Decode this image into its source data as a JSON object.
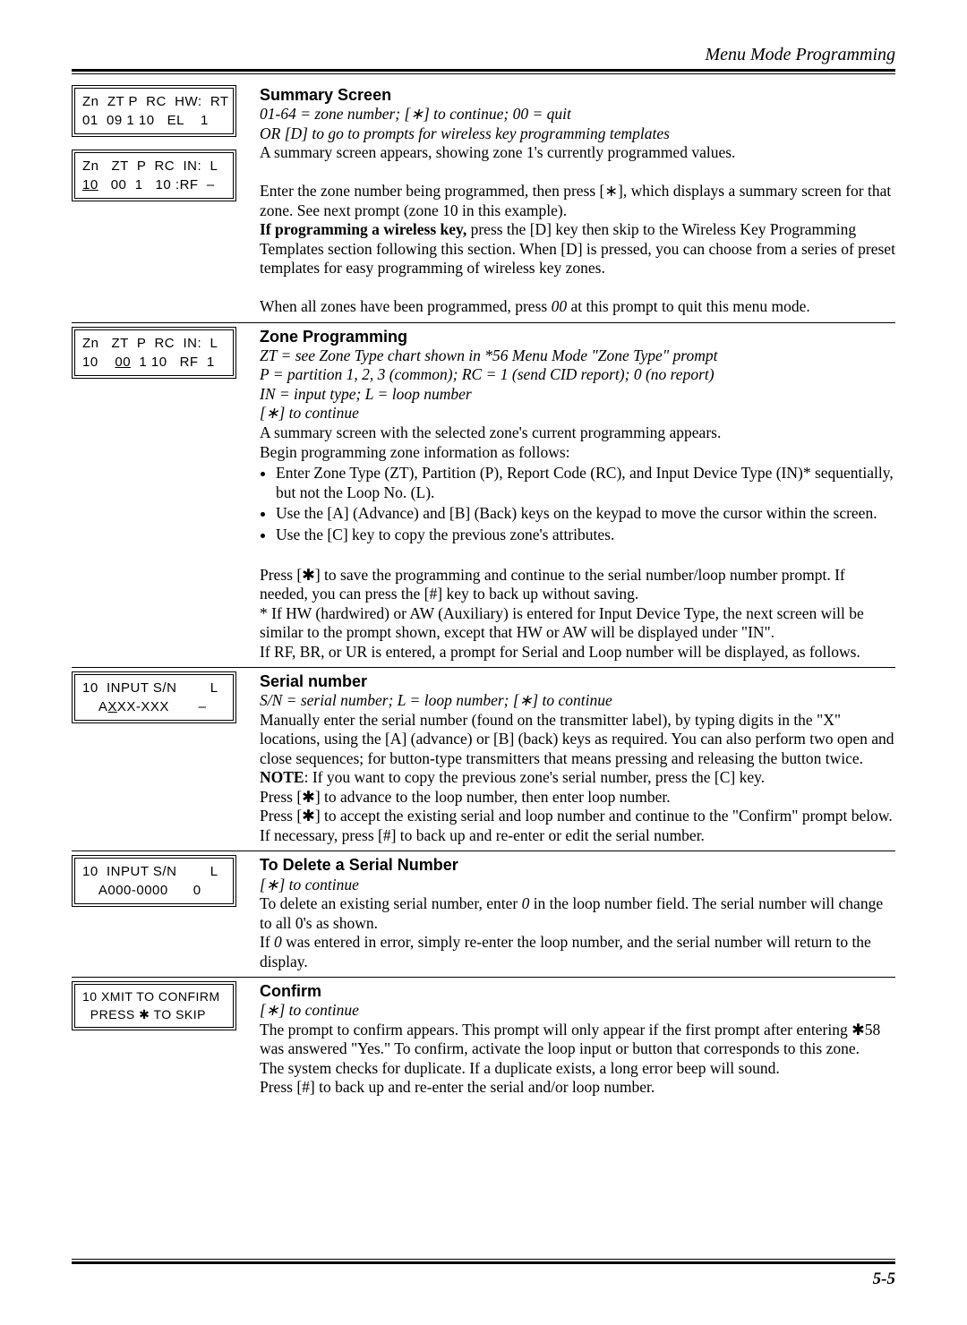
{
  "header": {
    "title": "Menu Mode Programming"
  },
  "footer": {
    "page_number": "5-5"
  },
  "sections": [
    {
      "lcd_lines": [
        "Zn  ZT P  RC  HW:  RT\n01  09 1 10   EL    1",
        "Zn   ZT  P  RC  IN:  L\n10   00  1   10 :RF  –"
      ],
      "title": "Summary Screen",
      "subtitle": "01-64 = zone number;  [∗]  to continue;  00 = quit\nOR  [D] to go to prompts for wireless key programming templates",
      "body_html": "A summary screen appears, showing zone 1's currently programmed  values.<br><br>Enter the zone number being programmed, then press [∗], which displays a summary screen for that zone. See next prompt (zone 10 in this example).<br><span class=\"bold\">If programming a wireless key,</span> press the [D] key then skip to the Wireless Key Programming Templates section following this section. When [D] is pressed, you can choose from a series of preset templates for easy programming of wireless key zones.<br><br>When all zones have been programmed, press <span class=\"ital\">00</span> at this prompt to quit this menu mode."
    },
    {
      "lcd_lines": [
        "Zn   ZT  P  RC  IN:  L\n10    00  1 10   RF  1"
      ],
      "lcd_underline_idx": 0,
      "title": "Zone Programming",
      "subtitle": "ZT = see Zone Type chart shown in *56 Menu Mode \"Zone Type\" prompt\nP =  partition 1, 2, 3 (common); RC = 1 (send CID report); 0 (no report)\nIN =  input type; L = loop number\n[∗] to continue",
      "body_html": "A summary screen with the selected zone's current programming appears.<br>Begin programming zone information as follows:<ul class=\"bullets\"><li>Enter Zone Type (ZT), Partition (P), Report Code (RC), and Input Device Type (IN)* sequentially, but not the Loop No. (L).</li><li>Use the [A] (Advance) and [B] (Back) keys on the keypad to move the cursor within the screen.</li><li>Use the [C] key to copy the previous zone's attributes.</li></ul><br>Press [✱] to save the programming and continue to the serial number/loop number prompt. If needed, you can press the [#] key to back up without saving.<br>* If HW (hardwired) or AW (Auxiliary) is entered for Input Device Type, the next screen will be similar to the prompt shown, except that HW or AW will be displayed under \"IN\".<br>If RF, BR, or UR is entered, a prompt for Serial and Loop number will be displayed, as follows."
    },
    {
      "lcd_lines": [
        "10  INPUT S/N        L\n    AXXX-XXX       –"
      ],
      "lcd_underline_idx": 1,
      "title": "Serial number",
      "subtitle": "S/N = serial number; L = loop number; [∗] to continue",
      "body_html": "Manually enter the serial number (found on the transmitter label), by typing digits in the \"X\" locations, using the [A] (advance) or [B] (back) keys as required. You can also perform two open and close sequences; for button-type transmitters that means pressing and releasing the button twice.<br><span class=\"bold\">NOTE</span>: If you want to copy the previous zone's serial number, press the [C] key.<br>Press [✱] to advance to the loop number, then enter loop number.<br>Press [✱] to accept the existing serial and loop number and continue to the \"Confirm\" prompt below. If necessary, press [#] to back up and re-enter or edit the serial number."
    },
    {
      "lcd_lines": [
        "10  INPUT S/N        L\n    A000-0000      0"
      ],
      "title": "To Delete a Serial Number",
      "subtitle": "[∗] to continue",
      "body_html": "To delete an existing serial number, enter <span class=\"ital\">0</span> in the loop number field.  The serial number will change to all 0's as shown.<br>If <span class=\"ital\">0</span> was entered in error, simply re-enter the loop number, and the serial number will return to the display."
    },
    {
      "lcd_lines": [
        "10 XMIT TO CONFIRM\n  PRESS ✱ TO SKIP"
      ],
      "title": "Confirm",
      "subtitle": "[∗] to continue",
      "body_html": "The prompt to confirm appears. This prompt will only appear if the first prompt after entering ✱58 was answered \"Yes.\"  To confirm, activate the loop input or button that corresponds to this zone.<br>The system checks for duplicate. If a duplicate exists, a long error beep will sound.<br>Press [#] to back up and re-enter the serial and/or loop number."
    }
  ]
}
